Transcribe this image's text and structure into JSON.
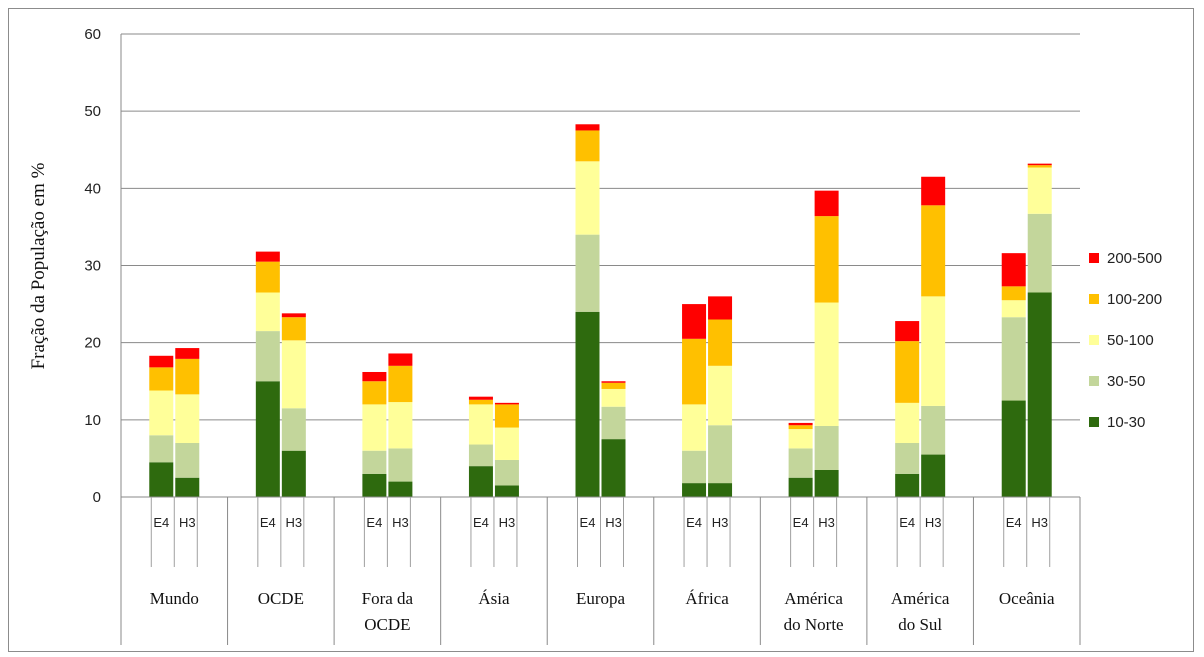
{
  "chart_data": {
    "type": "bar",
    "stacked": true,
    "title": "",
    "ylabel": "Fração da População em %",
    "ylim": [
      0,
      60
    ],
    "yticks": [
      0,
      10,
      20,
      30,
      40,
      50,
      60
    ],
    "grid": true,
    "legend_position": "right",
    "sub_categories": [
      "E4",
      "H3"
    ],
    "groups": [
      {
        "label": "Mundo"
      },
      {
        "label": "OCDE"
      },
      {
        "label": "Fora da OCDE"
      },
      {
        "label": "Ásia"
      },
      {
        "label": "Europa"
      },
      {
        "label": "África"
      },
      {
        "label": "América do Norte"
      },
      {
        "label": "América do Sul"
      },
      {
        "label": "Oceânia"
      }
    ],
    "categories": [
      "Mundo E4",
      "Mundo H3",
      "OCDE E4",
      "OCDE H3",
      "Fora da OCDE E4",
      "Fora da OCDE H3",
      "Ásia E4",
      "Ásia H3",
      "Europa E4",
      "Europa H3",
      "África E4",
      "África H3",
      "América do Norte E4",
      "América do Norte H3",
      "América do Sul E4",
      "América do Sul H3",
      "Oceânia E4",
      "Oceânia H3"
    ],
    "series": [
      {
        "name": "10-30",
        "color": "#2e6a0e",
        "values": [
          4.5,
          2.5,
          15.0,
          6.0,
          3.0,
          2.0,
          4.0,
          1.5,
          24.0,
          7.5,
          1.8,
          1.8,
          2.5,
          3.5,
          3.0,
          5.5,
          12.5,
          26.5
        ]
      },
      {
        "name": "30-50",
        "color": "#c3d69b",
        "values": [
          3.5,
          4.5,
          6.5,
          5.5,
          3.0,
          4.3,
          2.8,
          3.3,
          10.0,
          4.2,
          4.2,
          7.5,
          3.8,
          5.7,
          4.0,
          6.3,
          10.8,
          10.2
        ]
      },
      {
        "name": "50-100",
        "color": "#ffff99",
        "values": [
          5.8,
          6.3,
          5.0,
          8.8,
          6.0,
          6.0,
          5.2,
          4.2,
          9.5,
          2.3,
          6.0,
          7.7,
          2.5,
          16.0,
          5.2,
          14.2,
          2.2,
          6.0
        ]
      },
      {
        "name": "100-200",
        "color": "#ffc000",
        "values": [
          3.0,
          4.6,
          4.0,
          3.0,
          3.0,
          4.7,
          0.6,
          3.0,
          4.0,
          0.8,
          8.5,
          6.0,
          0.5,
          11.2,
          8.0,
          11.8,
          1.8,
          0.3
        ]
      },
      {
        "name": "200-500",
        "color": "#ff0000",
        "values": [
          1.5,
          1.4,
          1.3,
          0.5,
          1.2,
          1.6,
          0.4,
          0.2,
          0.8,
          0.2,
          4.5,
          3.0,
          0.3,
          3.3,
          2.6,
          3.7,
          4.3,
          0.2
        ]
      }
    ]
  }
}
